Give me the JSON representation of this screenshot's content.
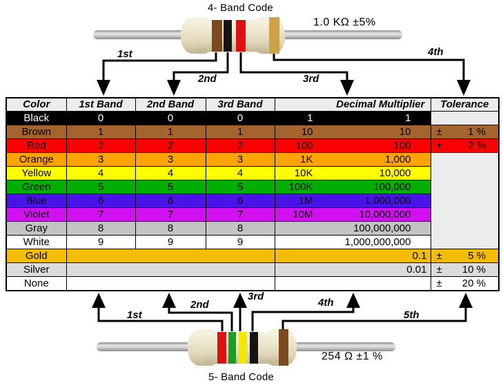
{
  "top_section": {
    "title": "4- Band Code",
    "value_label": "1.0 KΩ  ±5%",
    "arrow_labels": {
      "first": "1st",
      "second": "2nd",
      "third": "3rd",
      "fourth": "4th"
    },
    "resistor": {
      "body_color": "#EDE5CC",
      "lead_color": "#A9A9A9",
      "bands": [
        {
          "name": "brown",
          "color": "#7B4A1E"
        },
        {
          "name": "black",
          "color": "#141414"
        },
        {
          "name": "red",
          "color": "#E01010"
        },
        {
          "name": "gold",
          "color": "#CDA24A"
        }
      ]
    }
  },
  "table": {
    "header_bg": "#ECECEC",
    "empty_bg": "#ECECEC",
    "border_color": "#000000",
    "headers": {
      "color": "Color",
      "band1": "1st Band",
      "band2": "2nd Band",
      "band3": "3rd Band",
      "multiplier": "Decimal Multiplier",
      "tolerance": "Tolerance"
    },
    "rows": [
      {
        "label": "Black",
        "bg": "#000000",
        "fg": "#FFFFFF",
        "bands": [
          "0",
          "0",
          "0"
        ],
        "mult_prefix": "1",
        "mult_value": "1",
        "tol_sign": "",
        "tol_value": "",
        "tol_cell": "own"
      },
      {
        "label": "Brown",
        "bg": "#A5642E",
        "fg": "#000000",
        "bands": [
          "1",
          "1",
          "1"
        ],
        "mult_prefix": "10",
        "mult_value": "10",
        "tol_sign": "±",
        "tol_value": "1 %",
        "tol_cell": "own"
      },
      {
        "label": "Red",
        "bg": "#FA0000",
        "fg": "#000000",
        "bands": [
          "2",
          "2",
          "2"
        ],
        "mult_prefix": "100",
        "mult_value": "100",
        "tol_sign": "±",
        "tol_value": "2 %",
        "tol_cell": "own"
      },
      {
        "label": "Orange",
        "bg": "#FFA300",
        "fg": "#000000",
        "bands": [
          "3",
          "3",
          "3"
        ],
        "mult_prefix": "1K",
        "mult_value": "1,000",
        "tol_sign": "",
        "tol_value": "",
        "tol_cell": "span7"
      },
      {
        "label": "Yellow",
        "bg": "#FFFF00",
        "fg": "#000000",
        "bands": [
          "4",
          "4",
          "4"
        ],
        "mult_prefix": "10K",
        "mult_value": "10,000",
        "tol_sign": "",
        "tol_value": "",
        "tol_cell": "skip"
      },
      {
        "label": "Green",
        "bg": "#00AE00",
        "fg": "#000000",
        "bands": [
          "5",
          "5",
          "5"
        ],
        "mult_prefix": "100K",
        "mult_value": "100,000",
        "tol_sign": "",
        "tol_value": "",
        "tol_cell": "skip"
      },
      {
        "label": "Blue",
        "bg": "#4A14E9",
        "fg": "#000000",
        "bands": [
          "6",
          "6",
          "6"
        ],
        "mult_prefix": "1M",
        "mult_value": "1,000,000",
        "tol_sign": "",
        "tol_value": "",
        "tol_cell": "skip"
      },
      {
        "label": "Violet",
        "bg": "#D211F1",
        "fg": "#000000",
        "bands": [
          "7",
          "7",
          "7"
        ],
        "mult_prefix": "10M",
        "mult_value": "10,000,000",
        "tol_sign": "",
        "tol_value": "",
        "tol_cell": "skip"
      },
      {
        "label": "Gray",
        "bg": "#C3C3C3",
        "fg": "#000000",
        "bands": [
          "8",
          "8",
          "8"
        ],
        "mult_prefix": "",
        "mult_value": "100,000,000",
        "tol_sign": "",
        "tol_value": "",
        "tol_cell": "skip"
      },
      {
        "label": "White",
        "bg": "#FFFFFF",
        "fg": "#000000",
        "bands": [
          "9",
          "9",
          "9"
        ],
        "mult_prefix": "",
        "mult_value": "1,000,000,000",
        "tol_sign": "",
        "tol_value": "",
        "tol_cell": "skip"
      },
      {
        "label": "Gold",
        "bg": "#F5BD02",
        "fg": "#000000",
        "merged": true,
        "mult_value": "0.1",
        "mult_edge": true,
        "tol_sign": "±",
        "tol_value": "5 %",
        "tol_cell": "own"
      },
      {
        "label": "Silver",
        "bg": "#DBDBDB",
        "fg": "#000000",
        "merged": true,
        "mult_value": "0.01",
        "mult_edge": true,
        "tol_sign": "±",
        "tol_value": "10 %",
        "tol_cell": "own"
      },
      {
        "label": "None",
        "bg": "#FFFFFF",
        "fg": "#000000",
        "merged": true,
        "mult_value": "",
        "mult_edge": true,
        "tol_sign": "±",
        "tol_value": "20 %",
        "tol_cell": "own"
      }
    ]
  },
  "bottom_section": {
    "title": "5- Band Code",
    "value_label": "254 Ω  ±1 %",
    "arrow_labels": {
      "first": "1st",
      "second": "2nd",
      "third": "3rd",
      "fourth": "4th",
      "fifth": "5th"
    },
    "resistor": {
      "body_color": "#EDE5CC",
      "lead_color": "#A9A9A9",
      "bands": [
        {
          "name": "red",
          "color": "#E01010"
        },
        {
          "name": "green",
          "color": "#1C9C20"
        },
        {
          "name": "yellow",
          "color": "#EFE80C"
        },
        {
          "name": "black",
          "color": "#141414"
        },
        {
          "name": "brown",
          "color": "#7B4A1E"
        }
      ]
    }
  }
}
